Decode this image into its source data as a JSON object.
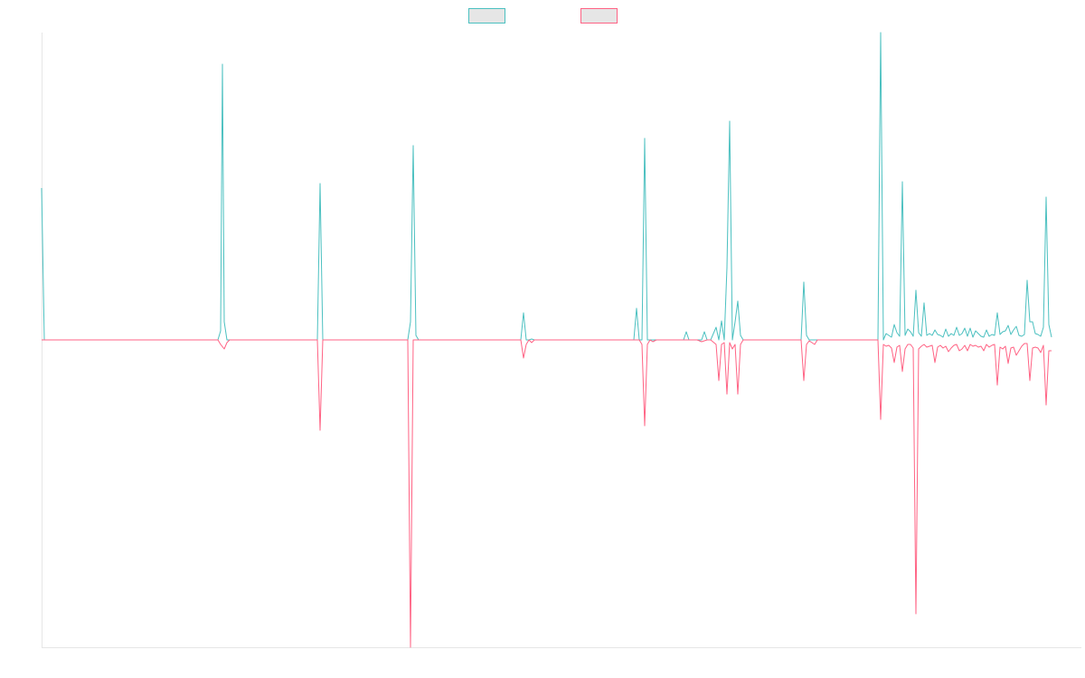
{
  "chart_data": {
    "type": "line",
    "title": "",
    "xlabel": "",
    "ylabel": "",
    "x_range": [
      0,
      230
    ],
    "ylim": [
      -340,
      340
    ],
    "grid": false,
    "legend_position": "top-center",
    "series": [
      {
        "color": "#4bc0c0",
        "fill": "#e6e6e6",
        "points": [
          [
            0,
            168
          ],
          [
            0.6,
            0
          ],
          [
            5,
            0
          ],
          [
            39,
            0
          ],
          [
            39.6,
            10
          ],
          [
            40,
            305
          ],
          [
            40.4,
            20
          ],
          [
            41,
            0
          ],
          [
            48,
            0
          ],
          [
            61,
            0
          ],
          [
            61.6,
            173
          ],
          [
            62.2,
            0
          ],
          [
            70,
            0
          ],
          [
            81,
            0
          ],
          [
            81.6,
            20
          ],
          [
            82.2,
            215
          ],
          [
            82.8,
            5
          ],
          [
            83.4,
            0
          ],
          [
            90,
            0
          ],
          [
            106,
            0
          ],
          [
            106.6,
            30
          ],
          [
            107.2,
            0
          ],
          [
            107.8,
            0
          ],
          [
            108.4,
            1
          ],
          [
            109,
            0
          ],
          [
            120,
            0
          ],
          [
            131,
            0
          ],
          [
            131.6,
            35
          ],
          [
            132.2,
            0
          ],
          [
            132.8,
            0
          ],
          [
            133.4,
            223
          ],
          [
            134,
            0
          ],
          [
            134.6,
            0
          ],
          [
            135.2,
            0
          ],
          [
            136,
            0
          ],
          [
            142,
            0
          ],
          [
            142.6,
            9
          ],
          [
            143.2,
            0
          ],
          [
            145,
            0
          ],
          [
            146,
            0
          ],
          [
            146.6,
            9
          ],
          [
            147.2,
            0
          ],
          [
            148,
            0
          ],
          [
            149.2,
            14
          ],
          [
            149.8,
            0
          ],
          [
            150.4,
            21
          ],
          [
            151,
            0
          ],
          [
            151.6,
            80
          ],
          [
            152.2,
            242
          ],
          [
            152.8,
            0
          ],
          [
            153.4,
            20
          ],
          [
            154,
            43
          ],
          [
            154.6,
            5
          ],
          [
            155.2,
            0
          ],
          [
            160,
            0
          ],
          [
            166,
            0
          ],
          [
            168,
            0
          ],
          [
            168.6,
            64
          ],
          [
            169.2,
            5
          ],
          [
            169.8,
            0
          ],
          [
            171,
            0
          ],
          [
            174,
            0
          ],
          [
            178,
            0
          ],
          [
            184,
            0
          ],
          [
            185,
            0
          ],
          [
            185.6,
            340
          ],
          [
            186.2,
            0
          ],
          [
            186.8,
            7
          ],
          [
            187.4,
            5
          ],
          [
            188,
            3
          ],
          [
            188.6,
            17
          ],
          [
            189.2,
            8
          ],
          [
            189.8,
            4
          ],
          [
            190.4,
            175
          ],
          [
            191,
            5
          ],
          [
            191.6,
            12
          ],
          [
            192.2,
            9
          ],
          [
            192.8,
            4
          ],
          [
            193.4,
            55
          ],
          [
            194,
            8
          ],
          [
            194.6,
            4
          ],
          [
            195.2,
            41
          ],
          [
            195.8,
            5
          ],
          [
            196.4,
            7
          ],
          [
            197,
            5
          ],
          [
            197.6,
            11
          ],
          [
            198.2,
            6
          ],
          [
            198.8,
            5
          ],
          [
            199.4,
            3
          ],
          [
            200,
            12
          ],
          [
            200.6,
            4
          ],
          [
            201.2,
            7
          ],
          [
            201.8,
            5
          ],
          [
            202.4,
            14
          ],
          [
            203,
            5
          ],
          [
            203.6,
            7
          ],
          [
            204.2,
            13
          ],
          [
            204.8,
            4
          ],
          [
            205.4,
            13
          ],
          [
            206,
            3
          ],
          [
            206.6,
            10
          ],
          [
            207.2,
            7
          ],
          [
            207.8,
            4
          ],
          [
            208.4,
            3
          ],
          [
            209,
            11
          ],
          [
            209.6,
            4
          ],
          [
            210.2,
            6
          ],
          [
            210.8,
            5
          ],
          [
            211.4,
            30
          ],
          [
            212,
            6
          ],
          [
            212.6,
            9
          ],
          [
            213.2,
            10
          ],
          [
            213.8,
            16
          ],
          [
            214.4,
            6
          ],
          [
            215,
            11
          ],
          [
            215.6,
            15
          ],
          [
            216.2,
            5
          ],
          [
            216.8,
            4
          ],
          [
            217.4,
            6
          ],
          [
            218,
            66
          ],
          [
            218.6,
            20
          ],
          [
            219.2,
            20
          ],
          [
            219.8,
            7
          ],
          [
            220.4,
            6
          ],
          [
            221,
            4
          ],
          [
            221.6,
            14
          ],
          [
            222.2,
            158
          ],
          [
            222.8,
            17
          ],
          [
            223.4,
            3
          ]
        ]
      },
      {
        "color": "#ff6384",
        "fill": "#e6e6e6",
        "points": [
          [
            0,
            0
          ],
          [
            39,
            0
          ],
          [
            39.6,
            -5
          ],
          [
            40.4,
            -10
          ],
          [
            41,
            -3
          ],
          [
            41.6,
            0
          ],
          [
            48,
            0
          ],
          [
            61,
            0
          ],
          [
            61.6,
            -100
          ],
          [
            62.2,
            0
          ],
          [
            70,
            0
          ],
          [
            81,
            0
          ],
          [
            81.6,
            -340
          ],
          [
            82.2,
            0
          ],
          [
            90,
            0
          ],
          [
            106,
            0
          ],
          [
            106.6,
            -20
          ],
          [
            107.2,
            -5
          ],
          [
            107.8,
            0
          ],
          [
            108.4,
            -3
          ],
          [
            109,
            0
          ],
          [
            120,
            0
          ],
          [
            131,
            0
          ],
          [
            132.2,
            0
          ],
          [
            132.8,
            -5
          ],
          [
            133.4,
            -95
          ],
          [
            134,
            -5
          ],
          [
            134.6,
            0
          ],
          [
            135.2,
            -2
          ],
          [
            136,
            0
          ],
          [
            142,
            0
          ],
          [
            145,
            0
          ],
          [
            146,
            -2
          ],
          [
            147.2,
            0
          ],
          [
            148,
            0
          ],
          [
            149.2,
            -5
          ],
          [
            149.8,
            -45
          ],
          [
            150.4,
            -5
          ],
          [
            151,
            -3
          ],
          [
            151.6,
            -60
          ],
          [
            152.2,
            -3
          ],
          [
            152.8,
            -10
          ],
          [
            153.4,
            -5
          ],
          [
            154,
            -60
          ],
          [
            154.6,
            -5
          ],
          [
            155.2,
            0
          ],
          [
            160,
            0
          ],
          [
            166,
            0
          ],
          [
            168,
            0
          ],
          [
            168.6,
            -45
          ],
          [
            169.2,
            -5
          ],
          [
            169.8,
            -1
          ],
          [
            171,
            -5
          ],
          [
            171.6,
            0
          ],
          [
            174,
            0
          ],
          [
            178,
            0
          ],
          [
            184,
            0
          ],
          [
            185,
            0
          ],
          [
            185.6,
            -88
          ],
          [
            186.2,
            -5
          ],
          [
            186.8,
            -7
          ],
          [
            187.4,
            -6
          ],
          [
            188,
            -9
          ],
          [
            188.6,
            -25
          ],
          [
            189.2,
            -8
          ],
          [
            189.8,
            -6
          ],
          [
            190.4,
            -35
          ],
          [
            191,
            -10
          ],
          [
            191.6,
            -5
          ],
          [
            192.2,
            -5
          ],
          [
            192.8,
            -9
          ],
          [
            193.4,
            -303
          ],
          [
            194,
            -10
          ],
          [
            194.6,
            -7
          ],
          [
            195.2,
            -5
          ],
          [
            195.8,
            -8
          ],
          [
            196.4,
            -7
          ],
          [
            197,
            -6
          ],
          [
            197.6,
            -25
          ],
          [
            198.2,
            -8
          ],
          [
            198.8,
            -6
          ],
          [
            199.4,
            -9
          ],
          [
            200,
            -7
          ],
          [
            200.6,
            -13
          ],
          [
            201.2,
            -9
          ],
          [
            201.8,
            -6
          ],
          [
            202.4,
            -5
          ],
          [
            203,
            -12
          ],
          [
            203.6,
            -10
          ],
          [
            204.2,
            -6
          ],
          [
            204.8,
            -12
          ],
          [
            205.4,
            -5
          ],
          [
            206,
            -7
          ],
          [
            206.6,
            -6
          ],
          [
            207.2,
            -8
          ],
          [
            207.8,
            -7
          ],
          [
            208.4,
            -12
          ],
          [
            209,
            -5
          ],
          [
            209.6,
            -8
          ],
          [
            210.2,
            -6
          ],
          [
            210.8,
            -5
          ],
          [
            211.4,
            -50
          ],
          [
            212,
            -8
          ],
          [
            212.6,
            -10
          ],
          [
            213.2,
            -7
          ],
          [
            213.8,
            -26
          ],
          [
            214.4,
            -9
          ],
          [
            215,
            -8
          ],
          [
            215.6,
            -17
          ],
          [
            216.2,
            -12
          ],
          [
            216.8,
            -7
          ],
          [
            217.4,
            -4
          ],
          [
            218,
            -4
          ],
          [
            218.6,
            -45
          ],
          [
            219.2,
            -9
          ],
          [
            219.8,
            -8
          ],
          [
            220.4,
            -9
          ],
          [
            221,
            -14
          ],
          [
            221.6,
            -6
          ],
          [
            222.2,
            -72
          ],
          [
            222.8,
            -12
          ],
          [
            223.4,
            -12
          ]
        ]
      }
    ]
  }
}
